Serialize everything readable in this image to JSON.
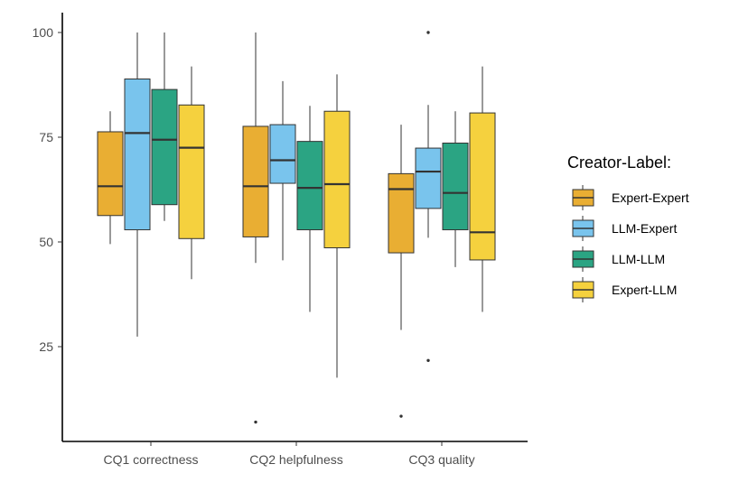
{
  "chart_data": {
    "type": "boxplot",
    "categories": [
      "CQ1 correctness",
      "CQ2 helpfulness",
      "CQ3 quality"
    ],
    "y_ticks": [
      "25",
      "50",
      "75",
      "100"
    ],
    "grid": false,
    "legend": {
      "title": "Creator-Label:",
      "position": "right"
    },
    "series": [
      {
        "name": "Expert-Expert",
        "color": "#E9AE33",
        "boxes": [
          {
            "whisker_low": 49.5,
            "q1": 56.3,
            "median": 63.3,
            "q3": 76.3,
            "whisker_high": 81.2,
            "outliers": []
          },
          {
            "whisker_low": 45.0,
            "q1": 51.2,
            "median": 63.3,
            "q3": 77.6,
            "whisker_high": 100.0,
            "outliers": [
              7.0
            ]
          },
          {
            "whisker_low": 29.0,
            "q1": 47.4,
            "median": 62.6,
            "q3": 66.3,
            "whisker_high": 78.0,
            "outliers": [
              8.4
            ]
          }
        ]
      },
      {
        "name": "LLM-Expert",
        "color": "#79C4ED",
        "boxes": [
          {
            "whisker_low": 27.4,
            "q1": 52.9,
            "median": 76.0,
            "q3": 88.9,
            "whisker_high": 100.0,
            "outliers": []
          },
          {
            "whisker_low": 45.6,
            "q1": 64.0,
            "median": 69.5,
            "q3": 78.0,
            "whisker_high": 88.4,
            "outliers": []
          },
          {
            "whisker_low": 51.0,
            "q1": 58.0,
            "median": 66.8,
            "q3": 72.4,
            "whisker_high": 82.7,
            "outliers": [
              21.7,
              100.0
            ]
          }
        ]
      },
      {
        "name": "LLM-LLM",
        "color": "#2BA483",
        "boxes": [
          {
            "whisker_low": 55.0,
            "q1": 58.9,
            "median": 74.4,
            "q3": 86.4,
            "whisker_high": 100.0,
            "outliers": []
          },
          {
            "whisker_low": 33.3,
            "q1": 52.9,
            "median": 62.9,
            "q3": 74.0,
            "whisker_high": 82.5,
            "outliers": []
          },
          {
            "whisker_low": 44.0,
            "q1": 52.9,
            "median": 61.7,
            "q3": 73.6,
            "whisker_high": 81.2,
            "outliers": []
          }
        ]
      },
      {
        "name": "Expert-LLM",
        "color": "#F5D13E",
        "boxes": [
          {
            "whisker_low": 41.1,
            "q1": 50.8,
            "median": 72.5,
            "q3": 82.7,
            "whisker_high": 91.9,
            "outliers": []
          },
          {
            "whisker_low": 17.6,
            "q1": 48.6,
            "median": 63.8,
            "q3": 81.2,
            "whisker_high": 90.0,
            "outliers": []
          },
          {
            "whisker_low": 33.3,
            "q1": 45.7,
            "median": 52.3,
            "q3": 80.8,
            "whisker_high": 91.9,
            "outliers": []
          }
        ]
      }
    ]
  }
}
